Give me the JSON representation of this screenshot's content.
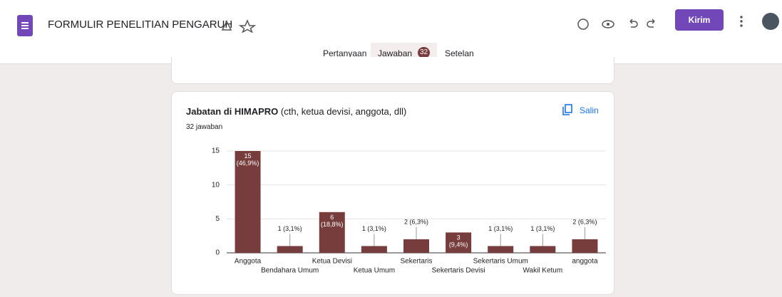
{
  "header": {
    "title": "FORMULIR PENELITIAN PENGARUH",
    "send_button": "Kirim"
  },
  "tabs": {
    "questions": "Pertanyaan",
    "responses": "Jawaban",
    "responses_count": "32",
    "settings": "Setelan"
  },
  "card": {
    "question_bold": "Jabatan di HIMAPRO",
    "question_rest": " (cth, ketua devisi, anggota, dll)",
    "response_count": "32 jawaban",
    "copy_button": "Salin"
  },
  "chart_data": {
    "type": "bar",
    "categories": [
      "Anggota",
      "Bendahara Umum",
      "Ketua Devisi",
      "Ketua Umum",
      "Sekertaris",
      "Sekertaris Devisi",
      "Sekertaris Umum",
      "Wakil Ketum",
      "anggota"
    ],
    "values": [
      15,
      1,
      6,
      1,
      2,
      3,
      1,
      1,
      2
    ],
    "value_labels": [
      "15 (46,9%)",
      "1 (3,1%)",
      "6 (18,8%)",
      "1 (3,1%)",
      "2 (6,3%)",
      "3 (9,4%)",
      "1 (3,1%)",
      "1 (3,1%)",
      "2 (6,3%)"
    ],
    "color": "#773d3d",
    "ylim": [
      0,
      15
    ],
    "yticks": [
      0,
      5,
      10,
      15
    ],
    "grid": true
  }
}
